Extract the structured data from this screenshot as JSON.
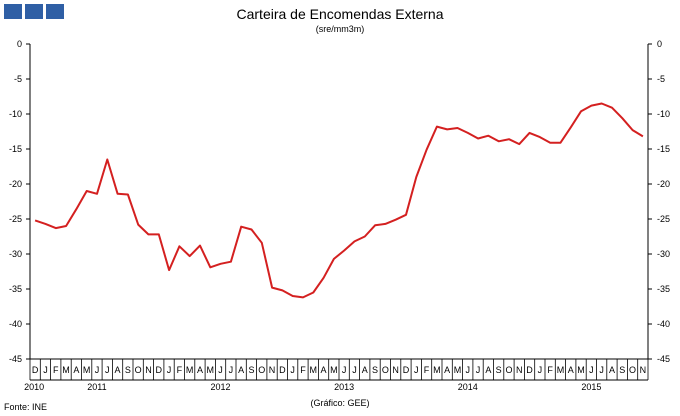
{
  "chart_data": {
    "type": "line",
    "title": "Carteira de Encomendas Externa",
    "subtitle": "(sre/mm3m)",
    "source_label": "Fonte:  INE",
    "credit_label": "(Gráfico:  GEE)",
    "ylim": [
      -45,
      0
    ],
    "yticks": [
      0,
      -5,
      -10,
      -15,
      -20,
      -25,
      -30,
      -35,
      -40,
      -45
    ],
    "grid": false,
    "line_color": "#d42020",
    "logo_color": "#2f5fa5",
    "x": [
      "2010-12",
      "2011-01",
      "2011-02",
      "2011-03",
      "2011-04",
      "2011-05",
      "2011-06",
      "2011-07",
      "2011-08",
      "2011-09",
      "2011-10",
      "2011-11",
      "2011-12",
      "2012-01",
      "2012-02",
      "2012-03",
      "2012-04",
      "2012-05",
      "2012-06",
      "2012-07",
      "2012-08",
      "2012-09",
      "2012-10",
      "2012-11",
      "2012-12",
      "2013-01",
      "2013-02",
      "2013-03",
      "2013-04",
      "2013-05",
      "2013-06",
      "2013-07",
      "2013-08",
      "2013-09",
      "2013-10",
      "2013-11",
      "2013-12",
      "2014-01",
      "2014-02",
      "2014-03",
      "2014-04",
      "2014-05",
      "2014-06",
      "2014-07",
      "2014-08",
      "2014-09",
      "2014-10",
      "2014-11",
      "2014-12",
      "2015-01",
      "2015-02",
      "2015-03",
      "2015-04",
      "2015-05",
      "2015-06",
      "2015-07",
      "2015-08",
      "2015-09",
      "2015-10",
      "2015-11"
    ],
    "month_labels": [
      "D",
      "J",
      "F",
      "M",
      "A",
      "M",
      "J",
      "J",
      "A",
      "S",
      "O",
      "N",
      "D",
      "J",
      "F",
      "M",
      "A",
      "M",
      "J",
      "J",
      "A",
      "S",
      "O",
      "N",
      "D",
      "J",
      "F",
      "M",
      "A",
      "M",
      "J",
      "J",
      "A",
      "S",
      "O",
      "N",
      "D",
      "J",
      "F",
      "M",
      "A",
      "M",
      "J",
      "J",
      "A",
      "S",
      "O",
      "N",
      "D",
      "J",
      "F",
      "M",
      "A",
      "M",
      "J",
      "J",
      "A",
      "S",
      "O",
      "N"
    ],
    "year_labels": [
      {
        "label": "2010",
        "index": 0
      },
      {
        "label": "2011",
        "index": 6
      },
      {
        "label": "2012",
        "index": 18
      },
      {
        "label": "2013",
        "index": 30
      },
      {
        "label": "2014",
        "index": 42
      },
      {
        "label": "2015",
        "index": 54
      }
    ],
    "series": [
      {
        "values": [
          -25.2,
          -25.7,
          -26.3,
          -26.0,
          -23.6,
          -21.0,
          -21.4,
          -16.5,
          -21.4,
          -21.5,
          -25.8,
          -27.2,
          -27.2,
          -32.3,
          -28.9,
          -30.3,
          -28.8,
          -31.9,
          -31.4,
          -31.1,
          -26.1,
          -26.5,
          -28.4,
          -34.8,
          -35.2,
          -36.0,
          -36.2,
          -35.5,
          -33.4,
          -30.7,
          -29.5,
          -28.2,
          -27.5,
          -25.9,
          -25.7,
          -25.1,
          -24.4,
          -19.0,
          -15.1,
          -11.8,
          -12.2,
          -12.0,
          -12.7,
          -13.5,
          -13.1,
          -13.9,
          -13.6,
          -14.3,
          -12.7,
          -13.3,
          -14.1,
          -14.1,
          -11.9,
          -9.6,
          -8.8,
          -8.5,
          -9.1,
          -10.6,
          -12.3,
          -13.2
        ]
      }
    ]
  }
}
